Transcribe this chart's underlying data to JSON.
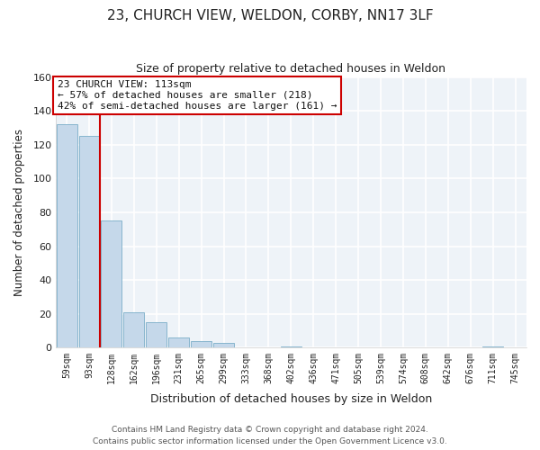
{
  "title": "23, CHURCH VIEW, WELDON, CORBY, NN17 3LF",
  "subtitle": "Size of property relative to detached houses in Weldon",
  "xlabel": "Distribution of detached houses by size in Weldon",
  "ylabel": "Number of detached properties",
  "bar_labels": [
    "59sqm",
    "93sqm",
    "128sqm",
    "162sqm",
    "196sqm",
    "231sqm",
    "265sqm",
    "299sqm",
    "333sqm",
    "368sqm",
    "402sqm",
    "436sqm",
    "471sqm",
    "505sqm",
    "539sqm",
    "574sqm",
    "608sqm",
    "642sqm",
    "676sqm",
    "711sqm",
    "745sqm"
  ],
  "bar_values": [
    132,
    125,
    75,
    21,
    15,
    6,
    4,
    3,
    0,
    0,
    1,
    0,
    0,
    0,
    0,
    0,
    0,
    0,
    0,
    1,
    0
  ],
  "bar_color": "#c5d8ea",
  "bar_edge_color": "#7aaec8",
  "property_line_color": "#cc0000",
  "annotation_text": "23 CHURCH VIEW: 113sqm\n← 57% of detached houses are smaller (218)\n42% of semi-detached houses are larger (161) →",
  "annotation_box_color": "white",
  "annotation_box_edge": "#cc0000",
  "ylim": [
    0,
    160
  ],
  "yticks": [
    0,
    20,
    40,
    60,
    80,
    100,
    120,
    140,
    160
  ],
  "footer_line1": "Contains HM Land Registry data © Crown copyright and database right 2024.",
  "footer_line2": "Contains public sector information licensed under the Open Government Licence v3.0.",
  "bg_color": "#ffffff",
  "plot_bg_color": "#eef3f8",
  "grid_color": "white"
}
